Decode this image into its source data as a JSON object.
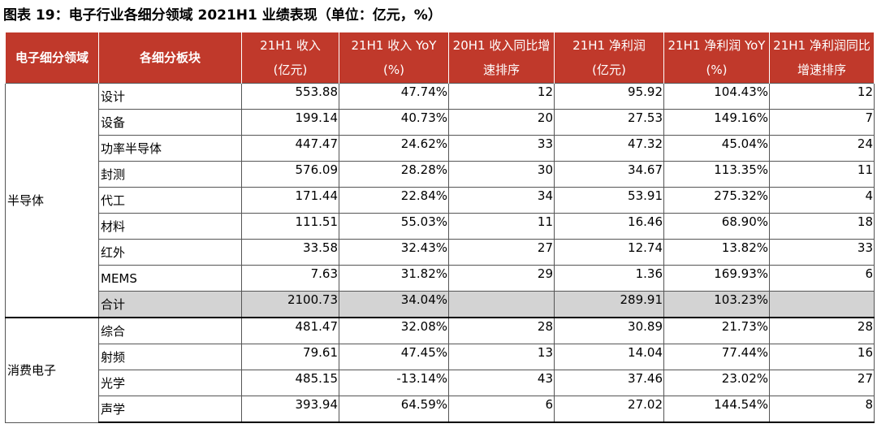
{
  "caption": "图表 19：电子行业各细分领域 2021H1 业绩表现（单位：亿元，%）",
  "colors": {
    "header_bg": "#c0392b",
    "header_text": "#ffffff",
    "total_row_bg": "#d3d3d3"
  },
  "headers": {
    "segment": "电子细分领域",
    "sub": "各细分板块",
    "rev_l1": "21H1 收入",
    "rev_l2": "(亿元)",
    "rev_yoy_l1": "21H1 收入 YoY",
    "rev_yoy_l2": "(%)",
    "rev_rank_l1": "20H1 收入同比增",
    "rev_rank_l2": "速排序",
    "np_l1": "21H1 净利润",
    "np_l2": "(亿元)",
    "np_yoy_l1": "21H1 净利润 YoY",
    "np_yoy_l2": "(%)",
    "np_rank_l1": "21H1 净利润同比",
    "np_rank_l2": "增速排序"
  },
  "groups": {
    "semi": "半导体",
    "consumer": "消费电子"
  },
  "semi": [
    {
      "name": "设计",
      "rev": "553.88",
      "rev_yoy": "47.74%",
      "rev_rank": "12",
      "np": "95.92",
      "np_yoy": "104.43%",
      "np_rank": "12"
    },
    {
      "name": "设备",
      "rev": "199.14",
      "rev_yoy": "40.73%",
      "rev_rank": "20",
      "np": "27.53",
      "np_yoy": "149.16%",
      "np_rank": "7"
    },
    {
      "name": "功率半导体",
      "rev": "447.47",
      "rev_yoy": "24.62%",
      "rev_rank": "33",
      "np": "47.32",
      "np_yoy": "45.04%",
      "np_rank": "24"
    },
    {
      "name": "封测",
      "rev": "576.09",
      "rev_yoy": "28.28%",
      "rev_rank": "30",
      "np": "34.67",
      "np_yoy": "113.35%",
      "np_rank": "11"
    },
    {
      "name": "代工",
      "rev": "171.44",
      "rev_yoy": "22.84%",
      "rev_rank": "34",
      "np": "53.91",
      "np_yoy": "275.32%",
      "np_rank": "4"
    },
    {
      "name": "材料",
      "rev": "111.51",
      "rev_yoy": "55.03%",
      "rev_rank": "11",
      "np": "16.46",
      "np_yoy": "68.90%",
      "np_rank": "18"
    },
    {
      "name": "红外",
      "rev": "33.58",
      "rev_yoy": "32.43%",
      "rev_rank": "27",
      "np": "12.74",
      "np_yoy": "13.82%",
      "np_rank": "33"
    },
    {
      "name": "MEMS",
      "rev": "7.63",
      "rev_yoy": "31.82%",
      "rev_rank": "29",
      "np": "1.36",
      "np_yoy": "169.93%",
      "np_rank": "6"
    },
    {
      "name": "合计",
      "rev": "2100.73",
      "rev_yoy": "34.04%",
      "rev_rank": "",
      "np": "289.91",
      "np_yoy": "103.23%",
      "np_rank": ""
    }
  ],
  "consumer": [
    {
      "name": "综合",
      "rev": "481.47",
      "rev_yoy": "32.08%",
      "rev_rank": "28",
      "np": "30.89",
      "np_yoy": "21.73%",
      "np_rank": "28"
    },
    {
      "name": "射频",
      "rev": "79.61",
      "rev_yoy": "47.45%",
      "rev_rank": "13",
      "np": "14.04",
      "np_yoy": "77.44%",
      "np_rank": "16"
    },
    {
      "name": "光学",
      "rev": "485.15",
      "rev_yoy": "-13.14%",
      "rev_rank": "43",
      "np": "37.46",
      "np_yoy": "23.02%",
      "np_rank": "27"
    },
    {
      "name": "声学",
      "rev": "393.94",
      "rev_yoy": "64.59%",
      "rev_rank": "6",
      "np": "27.02",
      "np_yoy": "144.54%",
      "np_rank": "8"
    }
  ]
}
